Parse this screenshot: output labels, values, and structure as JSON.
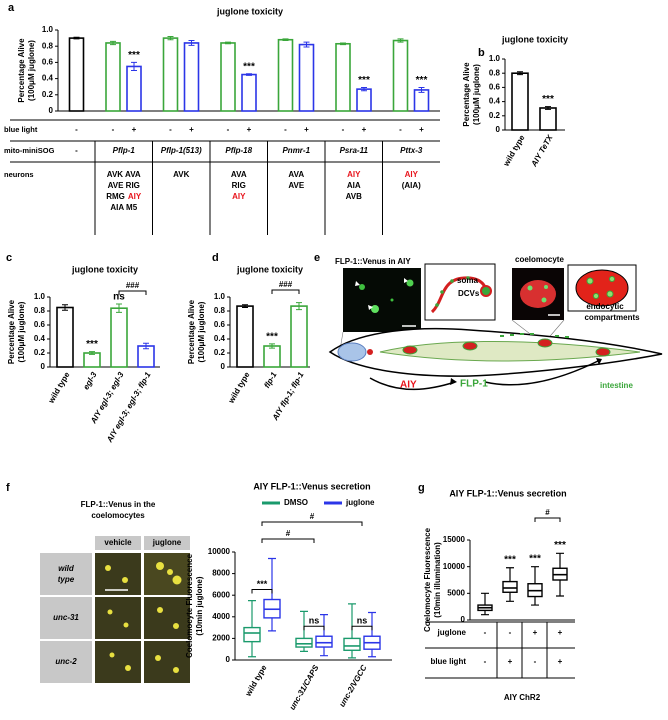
{
  "figure": {
    "panel_labels": [
      "a",
      "b",
      "c",
      "d",
      "e",
      "f",
      "g"
    ]
  },
  "chart_data": [
    {
      "type": "bar",
      "title": "juglone toxicity",
      "y_label": [
        "Percentage Alive",
        "(100μM juglone)"
      ],
      "ylim": [
        0,
        1
      ],
      "yticks": [
        0,
        0.2,
        0.4,
        0.6,
        0.8,
        {
          "value": 1,
          "label": "1.0"
        }
      ],
      "values": [
        0.9,
        0.84,
        0.55,
        0.9,
        0.84,
        0.84,
        0.45,
        0.88,
        0.82,
        0.83,
        0.27,
        0.87,
        0.26
      ],
      "errors": [
        0.01,
        0.02,
        0.05,
        0.02,
        0.03,
        0.01,
        0.01,
        0.01,
        0.03,
        0.01,
        0.02,
        0.02,
        0.03
      ],
      "colors": [
        "#000000",
        "#3aa63a",
        "#2b35e8",
        "#3aa63a",
        "#2b35e8",
        "#3aa63a",
        "#2b35e8",
        "#3aa63a",
        "#2b35e8",
        "#3aa63a",
        "#2b35e8",
        "#3aa63a",
        "#2b35e8"
      ],
      "significance": [
        null,
        null,
        "***",
        null,
        null,
        null,
        "***",
        null,
        null,
        null,
        "***",
        null,
        "***"
      ],
      "table": {
        "rows": [
          {
            "label": "blue light",
            "cells": [
              "-",
              "-",
              "+",
              "-",
              "+",
              "-",
              "+",
              "-",
              "+",
              "-",
              "+",
              "-",
              "+"
            ]
          },
          {
            "label": "mito-miniSOG",
            "cells": [
              "-",
              "Pflp-1",
              "Pflp-1(513)",
              "Pflp-18",
              "Pnmr-1",
              "Psra-11",
              "Pttx-3"
            ]
          },
          {
            "label": "neurons",
            "cells": [
              null,
              [
                [
                  "AVK AVA"
                ],
                [
                  "AVE RIG"
                ],
                [
                  "RMG",
                  {
                    "text": "AIY",
                    "color": "#e8141c"
                  }
                ],
                [
                  "AIA M5"
                ]
              ],
              [
                [
                  "AVK"
                ]
              ],
              [
                [
                  "AVA"
                ],
                [
                  "RIG"
                ],
                [
                  {
                    "text": "AIY",
                    "color": "#e8141c"
                  }
                ]
              ],
              [
                [
                  "AVA"
                ],
                [
                  "AVE"
                ]
              ],
              [
                [
                  {
                    "text": "AIY",
                    "color": "#e8141c"
                  }
                ],
                [
                  "AIA"
                ],
                [
                  "AVB"
                ]
              ],
              [
                [
                  {
                    "text": "AIY",
                    "color": "#e8141c"
                  }
                ],
                [
                  "(AIA)"
                ]
              ]
            ]
          }
        ]
      }
    },
    {
      "type": "bar",
      "title": "juglone toxicity",
      "y_label": [
        "Percentage Alive",
        "(100μM juglone)"
      ],
      "ylim": [
        0,
        1
      ],
      "yticks": [
        0,
        0.2,
        0.4,
        0.6,
        0.8,
        {
          "value": 1,
          "label": "1.0"
        }
      ],
      "categories": [
        "wild type",
        "AIY TeTX"
      ],
      "values": [
        0.8,
        0.31
      ],
      "errors": [
        0.02,
        0.02
      ],
      "colors": [
        "#000000",
        "#000000"
      ],
      "significance": [
        null,
        "***"
      ]
    },
    {
      "type": "bar",
      "title": "juglone toxicity",
      "y_label": [
        "Percentage Alive",
        "(100μM juglone)"
      ],
      "ylim": [
        0,
        1
      ],
      "yticks": [
        0,
        0.2,
        0.4,
        0.6,
        0.8,
        {
          "value": 1,
          "label": "1.0"
        }
      ],
      "categories": [
        "wild type",
        "egl-3",
        "AIY egl-3; egl-3",
        "AIY egl-3; egl-3; flp-1"
      ],
      "values": [
        0.85,
        0.2,
        0.84,
        0.3
      ],
      "errors": [
        0.04,
        0.02,
        0.06,
        0.04
      ],
      "colors": [
        "#000000",
        "#3aa63a",
        "#3aa63a",
        "#2b35e8"
      ],
      "significance": [
        null,
        "***",
        "ns",
        null
      ],
      "comparisons": [
        {
          "text": "###",
          "between": [
            2,
            3
          ]
        }
      ]
    },
    {
      "type": "bar",
      "title": "juglone toxicity",
      "y_label": [
        "Percentage Alive",
        "(100μM juglone)"
      ],
      "ylim": [
        0,
        1
      ],
      "yticks": [
        0,
        0.2,
        0.4,
        0.6,
        0.8,
        {
          "value": 1,
          "label": "1.0"
        }
      ],
      "categories": [
        "wild type",
        "flp-1",
        "AIY flp-1; flp-1"
      ],
      "values": [
        0.87,
        0.3,
        0.87
      ],
      "errors": [
        0.02,
        0.03,
        0.05
      ],
      "colors": [
        "#000000",
        "#3aa63a",
        "#3aa63a"
      ],
      "significance": [
        null,
        "***",
        null
      ],
      "comparisons": [
        {
          "text": "###",
          "between": [
            1,
            2
          ]
        }
      ]
    },
    {
      "type": "box",
      "title": "AIY FLP-1::Venus secretion",
      "y_label": [
        "Coelomocyte Fluorescence",
        "(10min juglone)"
      ],
      "ylim": [
        0,
        10000
      ],
      "yticks": [
        0,
        2000,
        4000,
        6000,
        8000,
        10000
      ],
      "categories": [
        "wild type",
        "unc-31/CAPS",
        "unc-2/VGCC"
      ],
      "series": [
        {
          "name": "DMSO",
          "color": "#1a9a6c",
          "values": [
            {
              "min": 300,
              "q1": 1700,
              "median": 2500,
              "q3": 3000,
              "max": 5500
            },
            {
              "min": 800,
              "q1": 1200,
              "median": 1500,
              "q3": 2000,
              "max": 4500
            },
            {
              "min": 200,
              "q1": 900,
              "median": 1300,
              "q3": 2000,
              "max": 5200
            }
          ]
        },
        {
          "name": "juglone",
          "color": "#2b35e8",
          "values": [
            {
              "min": 2700,
              "q1": 3900,
              "median": 4700,
              "q3": 5600,
              "max": 9400
            },
            {
              "min": 400,
              "q1": 1200,
              "median": 1600,
              "q3": 2200,
              "max": 4200
            },
            {
              "min": 300,
              "q1": 1000,
              "median": 1600,
              "q3": 2200,
              "max": 4400
            }
          ]
        }
      ],
      "pair_tests": [
        "***",
        "ns",
        "ns"
      ],
      "comparisons": [
        {
          "text": "#",
          "between": [
            0,
            2
          ]
        },
        {
          "text": "#",
          "between": [
            0,
            1
          ]
        }
      ]
    },
    {
      "type": "box",
      "title": "AIY FLP-1::Venus secretion",
      "y_label": [
        "Coelomocyte Fluorescence",
        "(10min illumination)"
      ],
      "ylim": [
        0,
        15000
      ],
      "yticks": [
        0,
        5000,
        10000,
        15000
      ],
      "color": "#000000",
      "values": [
        {
          "min": 1000,
          "q1": 1800,
          "median": 2300,
          "q3": 2800,
          "max": 5000
        },
        {
          "min": 3500,
          "q1": 5200,
          "median": 6000,
          "q3": 7200,
          "max": 9800
        },
        {
          "min": 2800,
          "q1": 4400,
          "median": 5500,
          "q3": 6800,
          "max": 10000
        },
        {
          "min": 4500,
          "q1": 7500,
          "median": 8500,
          "q3": 9700,
          "max": 12500
        }
      ],
      "significance": [
        null,
        "***",
        "***",
        "***"
      ],
      "comparisons": [
        {
          "text": "#",
          "between": [
            2,
            3
          ]
        }
      ],
      "table": {
        "rows": [
          {
            "label": "juglone",
            "cells": [
              "-",
              "-",
              "+",
              "+"
            ]
          },
          {
            "label": "blue light",
            "cells": [
              "-",
              "+",
              "-",
              "+"
            ]
          }
        ]
      },
      "table_footer": "AIY ChR2"
    }
  ],
  "panel_e": {
    "image_title": "FLP-1::Venus in AIY",
    "soma": "soma",
    "dcvs": "DCVs",
    "coelomocyte": "coelomocyte",
    "compartments": [
      "endocytic",
      "compartments"
    ],
    "aiy": "AIY",
    "flp1": "FLP-1",
    "intestine": "intestine"
  },
  "panel_f_images": {
    "title": [
      "FLP-1::Venus in the",
      "coelomocytes"
    ],
    "columns": [
      "vehicle",
      "juglone"
    ],
    "rows": [
      [
        "wild",
        "type"
      ],
      [
        "unc-31"
      ],
      [
        "unc-2"
      ]
    ]
  }
}
